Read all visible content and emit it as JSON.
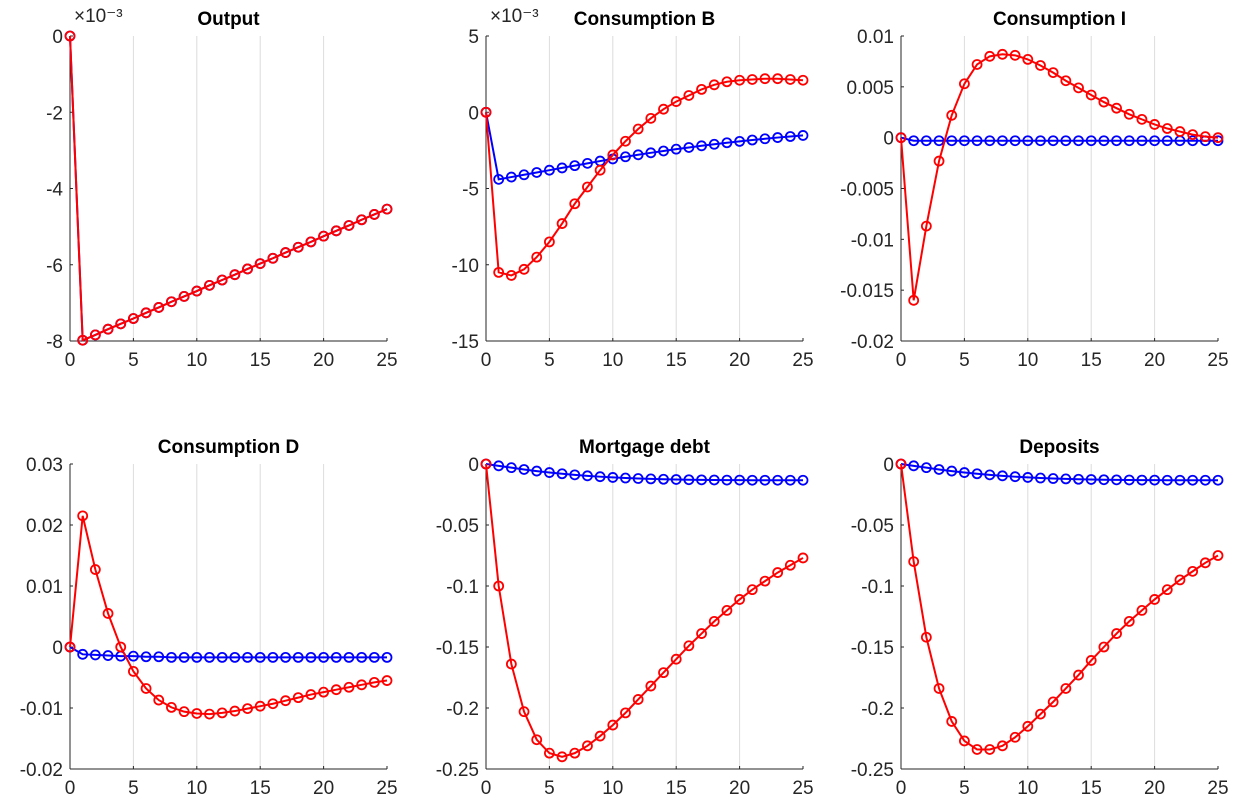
{
  "chart_data": [
    {
      "type": "line",
      "title": "Output",
      "exponent_label": "×10⁻³",
      "xlim": [
        0,
        25
      ],
      "ylim": [
        -8,
        0
      ],
      "xticks": [
        "0",
        "5",
        "10",
        "15",
        "20",
        "25"
      ],
      "yticks": [
        0,
        -2,
        -4,
        -6,
        -8
      ],
      "ytick_labels": [
        "0",
        "-2",
        "-4",
        "-6",
        "-8"
      ],
      "x": [
        0,
        1,
        2,
        3,
        4,
        5,
        6,
        7,
        8,
        9,
        10,
        11,
        12,
        13,
        14,
        15,
        16,
        17,
        18,
        19,
        20,
        21,
        22,
        23,
        24,
        25
      ],
      "series": [
        {
          "color": "#0000ff",
          "values": [
            0,
            -7.98,
            -7.84,
            -7.69,
            -7.55,
            -7.41,
            -7.26,
            -7.12,
            -6.97,
            -6.83,
            -6.69,
            -6.54,
            -6.4,
            -6.26,
            -6.11,
            -5.97,
            -5.83,
            -5.68,
            -5.54,
            -5.4,
            -5.25,
            -5.11,
            -4.97,
            -4.82,
            -4.68,
            -4.54
          ]
        },
        {
          "color": "#ff0000",
          "values": [
            0,
            -7.98,
            -7.84,
            -7.69,
            -7.55,
            -7.41,
            -7.26,
            -7.12,
            -6.97,
            -6.83,
            -6.69,
            -6.54,
            -6.4,
            -6.26,
            -6.11,
            -5.97,
            -5.83,
            -5.68,
            -5.54,
            -5.4,
            -5.25,
            -5.11,
            -4.97,
            -4.82,
            -4.68,
            -4.54
          ]
        }
      ]
    },
    {
      "type": "line",
      "title": "Consumption B",
      "exponent_label": "×10⁻³",
      "xlim": [
        0,
        25
      ],
      "ylim": [
        -15,
        5
      ],
      "xticks": [
        "0",
        "5",
        "10",
        "15",
        "20",
        "25"
      ],
      "yticks": [
        5,
        0,
        -5,
        -10,
        -15
      ],
      "ytick_labels": [
        "5",
        "0",
        "-5",
        "-10",
        "-15"
      ],
      "x": [
        0,
        1,
        2,
        3,
        4,
        5,
        6,
        7,
        8,
        9,
        10,
        11,
        12,
        13,
        14,
        15,
        16,
        17,
        18,
        19,
        20,
        21,
        22,
        23,
        24,
        25
      ],
      "series": [
        {
          "color": "#0000ff",
          "values": [
            0,
            -4.4,
            -4.25,
            -4.1,
            -3.95,
            -3.8,
            -3.65,
            -3.5,
            -3.35,
            -3.2,
            -3.06,
            -2.92,
            -2.79,
            -2.66,
            -2.54,
            -2.42,
            -2.31,
            -2.2,
            -2.1,
            -2.0,
            -1.91,
            -1.82,
            -1.74,
            -1.66,
            -1.59,
            -1.52
          ]
        },
        {
          "color": "#ff0000",
          "values": [
            0,
            -10.5,
            -10.7,
            -10.3,
            -9.5,
            -8.5,
            -7.3,
            -6.0,
            -4.9,
            -3.8,
            -2.8,
            -1.9,
            -1.1,
            -0.4,
            0.2,
            0.7,
            1.1,
            1.5,
            1.8,
            2.0,
            2.1,
            2.15,
            2.2,
            2.2,
            2.15,
            2.1
          ]
        }
      ]
    },
    {
      "type": "line",
      "title": "Consumption I",
      "exponent_label": "",
      "xlim": [
        0,
        25
      ],
      "ylim": [
        -0.02,
        0.01
      ],
      "xticks": [
        "0",
        "5",
        "10",
        "15",
        "20",
        "25"
      ],
      "yticks": [
        0.01,
        0.005,
        0,
        -0.005,
        -0.01,
        -0.015,
        -0.02
      ],
      "ytick_labels": [
        "0.01",
        "0.005",
        "0",
        "-0.005",
        "-0.01",
        "-0.015",
        "-0.02"
      ],
      "x": [
        0,
        1,
        2,
        3,
        4,
        5,
        6,
        7,
        8,
        9,
        10,
        11,
        12,
        13,
        14,
        15,
        16,
        17,
        18,
        19,
        20,
        21,
        22,
        23,
        24,
        25
      ],
      "series": [
        {
          "color": "#0000ff",
          "values": [
            0,
            -0.0003,
            -0.0003,
            -0.0003,
            -0.0003,
            -0.0003,
            -0.0003,
            -0.0003,
            -0.0003,
            -0.0003,
            -0.0003,
            -0.0003,
            -0.0003,
            -0.0003,
            -0.0003,
            -0.0003,
            -0.0003,
            -0.0003,
            -0.0003,
            -0.0003,
            -0.0003,
            -0.0003,
            -0.0003,
            -0.0003,
            -0.0003,
            -0.0003
          ]
        },
        {
          "color": "#ff0000",
          "values": [
            0,
            -0.016,
            -0.0087,
            -0.0023,
            0.0022,
            0.0053,
            0.0072,
            0.008,
            0.0082,
            0.0081,
            0.0077,
            0.0071,
            0.0064,
            0.0056,
            0.0049,
            0.0042,
            0.0035,
            0.0029,
            0.0023,
            0.0018,
            0.0013,
            0.0009,
            0.0006,
            0.0003,
            0.0001,
            0.0
          ]
        }
      ]
    },
    {
      "type": "line",
      "title": "Consumption D",
      "exponent_label": "",
      "xlim": [
        0,
        25
      ],
      "ylim": [
        -0.02,
        0.03
      ],
      "xticks": [
        "0",
        "5",
        "10",
        "15",
        "20",
        "25"
      ],
      "yticks": [
        0.03,
        0.02,
        0.01,
        0,
        -0.01,
        -0.02
      ],
      "ytick_labels": [
        "0.03",
        "0.02",
        "0.01",
        "0",
        "-0.01",
        "-0.02"
      ],
      "x": [
        0,
        1,
        2,
        3,
        4,
        5,
        6,
        7,
        8,
        9,
        10,
        11,
        12,
        13,
        14,
        15,
        16,
        17,
        18,
        19,
        20,
        21,
        22,
        23,
        24,
        25
      ],
      "series": [
        {
          "color": "#0000ff",
          "values": [
            0,
            -0.0012,
            -0.0013,
            -0.0014,
            -0.0015,
            -0.0015,
            -0.0016,
            -0.0016,
            -0.0017,
            -0.0017,
            -0.0017,
            -0.0017,
            -0.0017,
            -0.0017,
            -0.0017,
            -0.0017,
            -0.0017,
            -0.0017,
            -0.0017,
            -0.0017,
            -0.0017,
            -0.0017,
            -0.0017,
            -0.0017,
            -0.0017,
            -0.0017
          ]
        },
        {
          "color": "#ff0000",
          "values": [
            0,
            0.0215,
            0.0127,
            0.0055,
            0.0,
            -0.004,
            -0.0068,
            -0.0087,
            -0.0099,
            -0.0106,
            -0.0109,
            -0.011,
            -0.0108,
            -0.0105,
            -0.0101,
            -0.0097,
            -0.0093,
            -0.0088,
            -0.0083,
            -0.0078,
            -0.0074,
            -0.007,
            -0.0066,
            -0.0062,
            -0.0058,
            -0.0055
          ]
        }
      ]
    },
    {
      "type": "line",
      "title": "Mortgage debt",
      "exponent_label": "",
      "xlim": [
        0,
        25
      ],
      "ylim": [
        -0.25,
        0
      ],
      "xticks": [
        "0",
        "5",
        "10",
        "15",
        "20",
        "25"
      ],
      "yticks": [
        0,
        -0.05,
        -0.1,
        -0.15,
        -0.2,
        -0.25
      ],
      "ytick_labels": [
        "0",
        "-0.05",
        "-0.1",
        "-0.15",
        "-0.2",
        "-0.25"
      ],
      "x": [
        0,
        1,
        2,
        3,
        4,
        5,
        6,
        7,
        8,
        9,
        10,
        11,
        12,
        13,
        14,
        15,
        16,
        17,
        18,
        19,
        20,
        21,
        22,
        23,
        24,
        25
      ],
      "series": [
        {
          "color": "#0000ff",
          "values": [
            0,
            -0.0015,
            -0.003,
            -0.0045,
            -0.0058,
            -0.007,
            -0.008,
            -0.0089,
            -0.0097,
            -0.0104,
            -0.011,
            -0.0115,
            -0.0119,
            -0.0122,
            -0.0125,
            -0.0127,
            -0.0129,
            -0.013,
            -0.0131,
            -0.0132,
            -0.0132,
            -0.0133,
            -0.0133,
            -0.0133,
            -0.0133,
            -0.0133
          ]
        },
        {
          "color": "#ff0000",
          "values": [
            0,
            -0.1,
            -0.164,
            -0.203,
            -0.226,
            -0.237,
            -0.24,
            -0.237,
            -0.231,
            -0.223,
            -0.214,
            -0.204,
            -0.193,
            -0.182,
            -0.171,
            -0.16,
            -0.149,
            -0.139,
            -0.129,
            -0.12,
            -0.111,
            -0.103,
            -0.096,
            -0.089,
            -0.083,
            -0.077
          ]
        }
      ]
    },
    {
      "type": "line",
      "title": "Deposits",
      "exponent_label": "",
      "xlim": [
        0,
        25
      ],
      "ylim": [
        -0.25,
        0
      ],
      "xticks": [
        "0",
        "5",
        "10",
        "15",
        "20",
        "25"
      ],
      "yticks": [
        0,
        -0.05,
        -0.1,
        -0.15,
        -0.2,
        -0.25
      ],
      "ytick_labels": [
        "0",
        "-0.05",
        "-0.1",
        "-0.15",
        "-0.2",
        "-0.25"
      ],
      "x": [
        0,
        1,
        2,
        3,
        4,
        5,
        6,
        7,
        8,
        9,
        10,
        11,
        12,
        13,
        14,
        15,
        16,
        17,
        18,
        19,
        20,
        21,
        22,
        23,
        24,
        25
      ],
      "series": [
        {
          "color": "#0000ff",
          "values": [
            0,
            -0.0015,
            -0.003,
            -0.0045,
            -0.0058,
            -0.007,
            -0.008,
            -0.0089,
            -0.0097,
            -0.0104,
            -0.011,
            -0.0115,
            -0.0119,
            -0.0122,
            -0.0125,
            -0.0127,
            -0.0129,
            -0.013,
            -0.0131,
            -0.0132,
            -0.0132,
            -0.0133,
            -0.0133,
            -0.0133,
            -0.0133,
            -0.0133
          ]
        },
        {
          "color": "#ff0000",
          "values": [
            0,
            -0.08,
            -0.142,
            -0.184,
            -0.211,
            -0.227,
            -0.234,
            -0.234,
            -0.231,
            -0.224,
            -0.215,
            -0.205,
            -0.195,
            -0.184,
            -0.173,
            -0.161,
            -0.15,
            -0.139,
            -0.129,
            -0.12,
            -0.111,
            -0.103,
            -0.095,
            -0.088,
            -0.081,
            -0.075
          ]
        }
      ]
    }
  ]
}
